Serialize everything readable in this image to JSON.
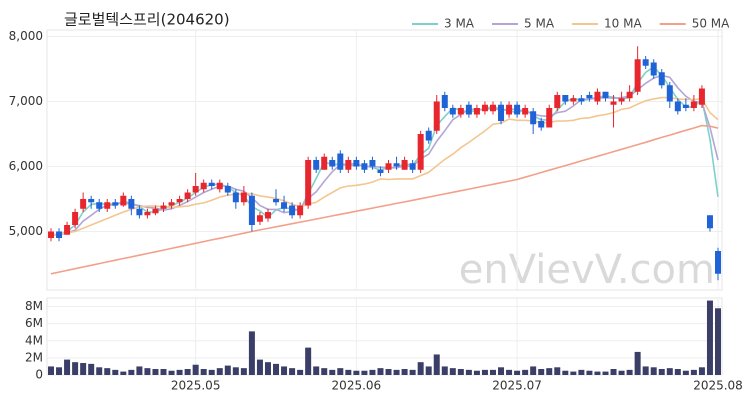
{
  "chart_data": {
    "type": "candlestick",
    "title": "글로벌텍스프리(204620)",
    "watermark": "enVievV.com",
    "grid": true,
    "up_color": "#e8262e",
    "down_color": "#1f63d6",
    "categories": [
      null,
      null,
      null,
      null,
      null,
      null,
      null,
      null,
      null,
      null,
      null,
      null,
      null,
      null,
      null,
      null,
      null,
      null,
      "2025.05",
      null,
      null,
      null,
      null,
      null,
      null,
      null,
      null,
      null,
      null,
      null,
      null,
      null,
      null,
      null,
      null,
      null,
      null,
      null,
      "2025.06",
      null,
      null,
      null,
      null,
      null,
      null,
      null,
      null,
      null,
      null,
      null,
      null,
      null,
      null,
      null,
      null,
      null,
      null,
      null,
      "2025.07",
      null,
      null,
      null,
      null,
      null,
      null,
      null,
      null,
      null,
      null,
      null,
      null,
      null,
      null,
      null,
      null,
      null,
      null,
      null,
      null,
      null,
      null,
      null,
      null,
      "2025.08"
    ],
    "ylim": [
      4100,
      8100
    ],
    "yticks": [
      {
        "value": 5000,
        "label": "5,000"
      },
      {
        "value": 6000,
        "label": "6,000"
      },
      {
        "value": 7000,
        "label": "7,000"
      },
      {
        "value": 8000,
        "label": "8,000"
      }
    ],
    "ohlc": [
      [
        4900,
        5050,
        4850,
        5000
      ],
      [
        5000,
        5050,
        4850,
        4900
      ],
      [
        4950,
        5150,
        4950,
        5100
      ],
      [
        5100,
        5350,
        5050,
        5300
      ],
      [
        5350,
        5600,
        5300,
        5500
      ],
      [
        5500,
        5550,
        5350,
        5450
      ],
      [
        5450,
        5500,
        5300,
        5350
      ],
      [
        5350,
        5500,
        5300,
        5450
      ],
      [
        5450,
        5500,
        5350,
        5400
      ],
      [
        5400,
        5600,
        5380,
        5550
      ],
      [
        5500,
        5550,
        5250,
        5350
      ],
      [
        5350,
        5400,
        5200,
        5250
      ],
      [
        5250,
        5350,
        5200,
        5300
      ],
      [
        5280,
        5400,
        5250,
        5350
      ],
      [
        5350,
        5450,
        5300,
        5400
      ],
      [
        5400,
        5500,
        5350,
        5450
      ],
      [
        5450,
        5550,
        5400,
        5500
      ],
      [
        5500,
        5650,
        5450,
        5600
      ],
      [
        5600,
        5900,
        5550,
        5700
      ],
      [
        5650,
        5800,
        5600,
        5750
      ],
      [
        5750,
        5800,
        5650,
        5700
      ],
      [
        5650,
        5800,
        5600,
        5750
      ],
      [
        5700,
        5750,
        5550,
        5600
      ],
      [
        5600,
        5650,
        5350,
        5450
      ],
      [
        5450,
        5700,
        5400,
        5600
      ],
      [
        5550,
        5600,
        5000,
        5100
      ],
      [
        5150,
        5300,
        5100,
        5250
      ],
      [
        5200,
        5350,
        5150,
        5300
      ],
      [
        5500,
        5650,
        5400,
        5450
      ],
      [
        5450,
        5550,
        5300,
        5350
      ],
      [
        5400,
        5450,
        5200,
        5250
      ],
      [
        5250,
        5450,
        5200,
        5400
      ],
      [
        5400,
        6150,
        5350,
        6100
      ],
      [
        6100,
        6150,
        5900,
        5950
      ],
      [
        5950,
        6200,
        5950,
        6150
      ],
      [
        6100,
        6150,
        5950,
        6000
      ],
      [
        6200,
        6250,
        5900,
        5950
      ],
      [
        5950,
        6150,
        5900,
        6100
      ],
      [
        6100,
        6150,
        5950,
        6000
      ],
      [
        6050,
        6100,
        5900,
        5950
      ],
      [
        6100,
        6150,
        5950,
        6000
      ],
      [
        5950,
        6000,
        5850,
        5900
      ],
      [
        5950,
        6100,
        5900,
        6050
      ],
      [
        6050,
        6150,
        5950,
        6000
      ],
      [
        5950,
        6150,
        5950,
        6100
      ],
      [
        6050,
        6100,
        5900,
        5950
      ],
      [
        5950,
        6550,
        5900,
        6500
      ],
      [
        6550,
        6600,
        6350,
        6400
      ],
      [
        6550,
        7100,
        6500,
        7000
      ],
      [
        7100,
        7150,
        6850,
        6900
      ],
      [
        6900,
        6950,
        6750,
        6800
      ],
      [
        6800,
        6950,
        6750,
        6900
      ],
      [
        6950,
        7000,
        6750,
        6800
      ],
      [
        6800,
        6950,
        6750,
        6900
      ],
      [
        6850,
        7000,
        6800,
        6950
      ],
      [
        6850,
        7000,
        6800,
        6950
      ],
      [
        6950,
        7000,
        6650,
        6700
      ],
      [
        6800,
        7000,
        6750,
        6950
      ],
      [
        6950,
        7000,
        6750,
        6800
      ],
      [
        6800,
        6950,
        6750,
        6900
      ],
      [
        6850,
        6900,
        6500,
        6650
      ],
      [
        6700,
        6750,
        6550,
        6600
      ],
      [
        6600,
        6950,
        6600,
        6900
      ],
      [
        6900,
        7150,
        6850,
        7100
      ],
      [
        7100,
        7100,
        6950,
        7000
      ],
      [
        7000,
        7100,
        6950,
        7050
      ],
      [
        7050,
        7100,
        6950,
        7000
      ],
      [
        7100,
        7150,
        7000,
        7050
      ],
      [
        7000,
        7200,
        6950,
        7150
      ],
      [
        7150,
        7150,
        7000,
        7050
      ],
      [
        6950,
        7100,
        6600,
        7000
      ],
      [
        7000,
        7150,
        6950,
        7050
      ],
      [
        7050,
        7250,
        7000,
        7150
      ],
      [
        7150,
        7850,
        7100,
        7650
      ],
      [
        7650,
        7700,
        7500,
        7550
      ],
      [
        7600,
        7650,
        7350,
        7400
      ],
      [
        7450,
        7500,
        7200,
        7250
      ],
      [
        7250,
        7300,
        6900,
        7000
      ],
      [
        7000,
        7050,
        6800,
        6850
      ],
      [
        6950,
        7050,
        6850,
        6900
      ],
      [
        6900,
        7100,
        6850,
        7000
      ],
      [
        6950,
        7250,
        6900,
        7200
      ],
      [
        5250,
        5250,
        5000,
        5050
      ],
      [
        4700,
        4750,
        4250,
        4350
      ]
    ],
    "series": [
      {
        "name": "3 MA",
        "color": "#7ed1c9",
        "values": [
          4950,
          4950,
          5000,
          5100,
          5300,
          5417,
          5433,
          5417,
          5400,
          5467,
          5433,
          5383,
          5300,
          5300,
          5350,
          5400,
          5450,
          5517,
          5600,
          5683,
          5717,
          5733,
          5683,
          5600,
          5550,
          5383,
          5317,
          5217,
          5333,
          5367,
          5350,
          5333,
          5583,
          5817,
          6067,
          6033,
          6033,
          6017,
          6017,
          6017,
          5983,
          5950,
          5983,
          5983,
          6050,
          6017,
          6183,
          6283,
          6633,
          6767,
          6900,
          6867,
          6833,
          6867,
          6883,
          6933,
          6867,
          6867,
          6817,
          6883,
          6783,
          6717,
          6717,
          6867,
          7000,
          7050,
          7017,
          7033,
          7067,
          7083,
          7067,
          7033,
          7067,
          7283,
          7450,
          7533,
          7400,
          7217,
          7033,
          6917,
          6917,
          7033,
          6417,
          5533
        ]
      },
      {
        "name": "5 MA",
        "color": "#b3a6d6",
        "values": [
          4950,
          4950,
          4980,
          5020,
          5160,
          5250,
          5340,
          5410,
          5430,
          5440,
          5420,
          5400,
          5370,
          5360,
          5330,
          5350,
          5400,
          5460,
          5530,
          5600,
          5650,
          5700,
          5700,
          5650,
          5620,
          5520,
          5400,
          5340,
          5340,
          5290,
          5310,
          5350,
          5510,
          5610,
          5770,
          5920,
          6030,
          6040,
          6040,
          6000,
          6000,
          5990,
          5980,
          5980,
          6010,
          6000,
          6120,
          6190,
          6390,
          6550,
          6720,
          6800,
          6880,
          6880,
          6870,
          6900,
          6860,
          6890,
          6870,
          6860,
          6800,
          6780,
          6770,
          6830,
          6850,
          6930,
          7030,
          7040,
          7050,
          7060,
          7050,
          7060,
          7080,
          7180,
          7280,
          7360,
          7400,
          7370,
          7210,
          7080,
          7000,
          6990,
          6600,
          6100
        ]
      },
      {
        "name": "10 MA",
        "color": "#f4c68f",
        "values": [
          4950,
          4960,
          4980,
          5000,
          5050,
          5100,
          5150,
          5200,
          5250,
          5300,
          5340,
          5380,
          5390,
          5390,
          5380,
          5370,
          5380,
          5390,
          5420,
          5440,
          5480,
          5530,
          5560,
          5570,
          5590,
          5580,
          5550,
          5530,
          5510,
          5470,
          5420,
          5380,
          5420,
          5450,
          5530,
          5600,
          5670,
          5700,
          5710,
          5730,
          5760,
          5810,
          5800,
          5810,
          5810,
          5810,
          5860,
          5910,
          6010,
          6110,
          6190,
          6290,
          6370,
          6460,
          6550,
          6650,
          6670,
          6730,
          6710,
          6710,
          6700,
          6670,
          6680,
          6700,
          6700,
          6710,
          6740,
          6750,
          6780,
          6800,
          6830,
          6880,
          6900,
          6960,
          7010,
          7040,
          7060,
          7060,
          7040,
          7030,
          7030,
          7040,
          6830,
          6720
        ]
      },
      {
        "name": "50 MA",
        "color": "#f3a08b",
        "values": [
          4350,
          4376,
          4402,
          4428,
          4454,
          4480,
          4506,
          4532,
          4558,
          4584,
          4610,
          4636,
          4662,
          4688,
          4714,
          4740,
          4766,
          4792,
          4818,
          4844,
          4870,
          4896,
          4922,
          4948,
          4974,
          5000,
          5024,
          5048,
          5072,
          5096,
          5120,
          5144,
          5168,
          5192,
          5216,
          5240,
          5264,
          5288,
          5312,
          5336,
          5360,
          5384,
          5408,
          5432,
          5456,
          5480,
          5505,
          5529,
          5554,
          5578,
          5603,
          5628,
          5652,
          5677,
          5702,
          5726,
          5751,
          5775,
          5800,
          5836,
          5871,
          5907,
          5943,
          5979,
          6014,
          6050,
          6086,
          6121,
          6157,
          6193,
          6229,
          6264,
          6300,
          6337,
          6373,
          6410,
          6447,
          6483,
          6520,
          6557,
          6593,
          6630,
          6620,
          6590
        ]
      }
    ],
    "volume": {
      "color": "#3b3f68",
      "ylim": [
        0,
        9000000
      ],
      "yticks": [
        0,
        {
          "value": 2000000,
          "label": "2M"
        },
        {
          "value": 4000000,
          "label": "4M"
        },
        {
          "value": 6000000,
          "label": "6M"
        },
        {
          "value": 8000000,
          "label": "8M"
        }
      ],
      "values": [
        1000000,
        900000,
        1800000,
        1500000,
        1400000,
        1300000,
        900000,
        800000,
        600000,
        400000,
        600000,
        1000000,
        800000,
        700000,
        700000,
        500000,
        600000,
        700000,
        1200000,
        700000,
        600000,
        800000,
        1100000,
        900000,
        800000,
        5100000,
        1800000,
        1500000,
        1300000,
        1000000,
        800000,
        600000,
        3200000,
        1000000,
        800000,
        600000,
        800000,
        600000,
        500000,
        500000,
        600000,
        800000,
        700000,
        600000,
        700000,
        600000,
        1500000,
        1000000,
        2400000,
        1000000,
        800000,
        700000,
        600000,
        500000,
        600000,
        600000,
        900000,
        600000,
        500000,
        600000,
        1000000,
        700000,
        800000,
        900000,
        500000,
        400000,
        600000,
        500000,
        400000,
        400000,
        700000,
        500000,
        600000,
        2700000,
        1000000,
        900000,
        700000,
        800000,
        700000,
        500000,
        600000,
        900000,
        8700000,
        7800000
      ]
    }
  }
}
